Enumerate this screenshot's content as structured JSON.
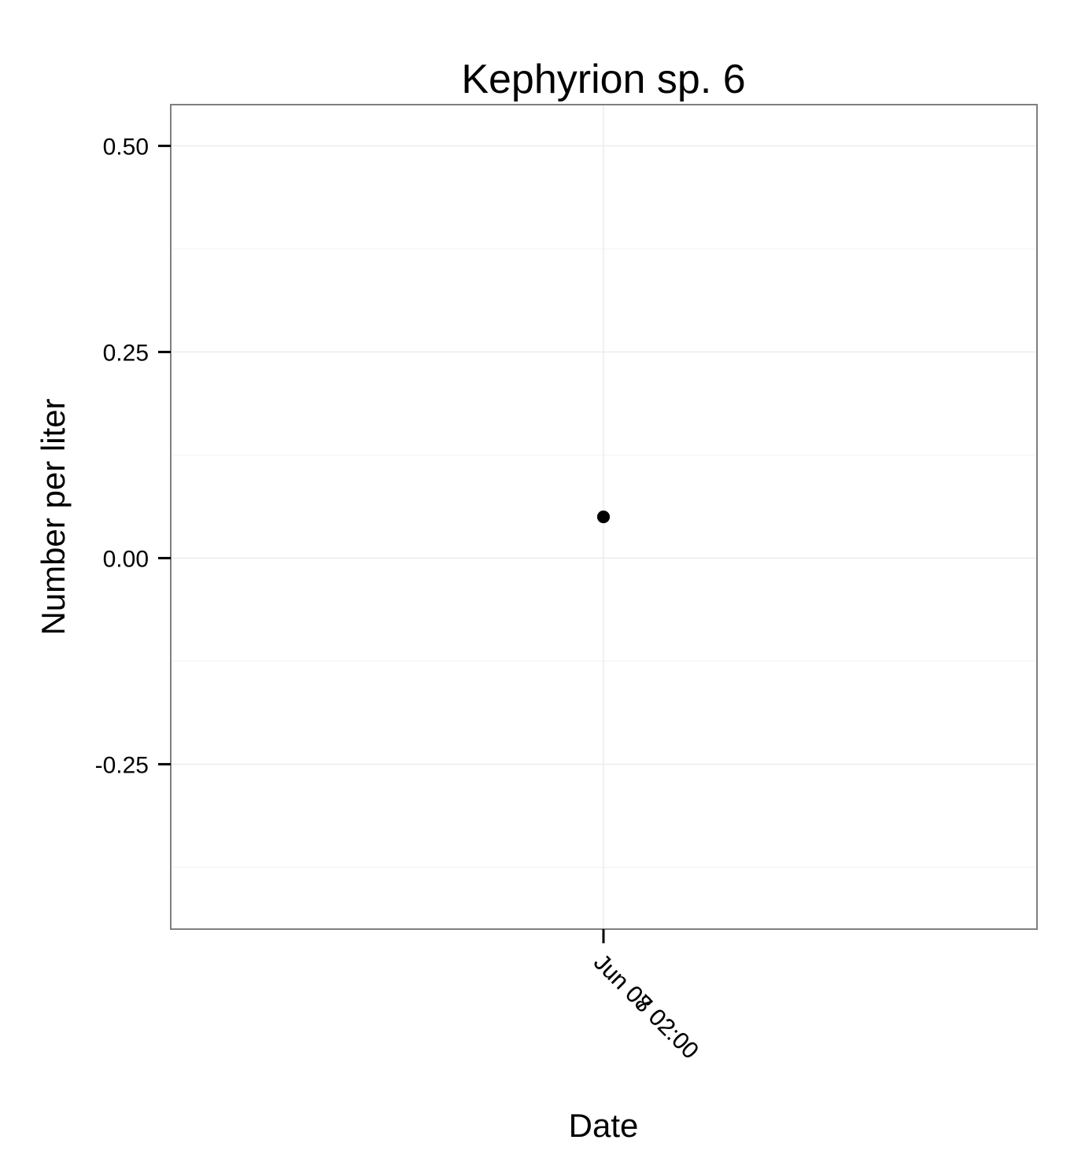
{
  "chart_data": {
    "type": "scatter",
    "title": "Kephyrion sp. 6",
    "xlabel": "Date",
    "ylabel": "Number per liter",
    "x_tick_labels": [
      "Jun 07 02:00",
      "Jun 08 02:00"
    ],
    "y_ticks": [
      -0.25,
      0.0,
      0.25,
      0.5
    ],
    "y_tick_labels": [
      "-0.25",
      "0.00",
      "0.25",
      "0.50"
    ],
    "ylim": [
      -0.45,
      0.55
    ],
    "grid": true,
    "legend": "none",
    "series": [
      {
        "x": [
          "Jun 07 02:00",
          "Jun 08 02:00"
        ],
        "y": [
          0.05,
          0.05
        ]
      }
    ],
    "colors": {
      "point": "#000000",
      "grid": "#ebebeb",
      "border": "#7f7f7f"
    }
  }
}
